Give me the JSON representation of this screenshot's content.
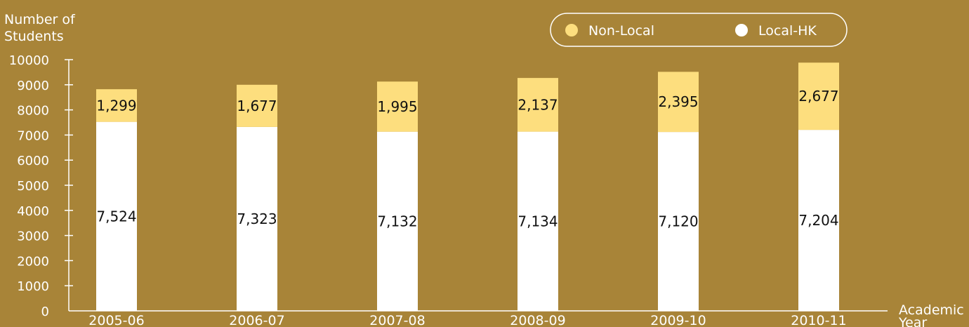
{
  "chart_data": {
    "type": "bar",
    "stacked": true,
    "ylabel": "Number of Students",
    "xlabel": "Academic Year",
    "ylim": [
      0,
      10000
    ],
    "y_ticks": [
      "0",
      "1000",
      "2000",
      "3000",
      "4000",
      "5000",
      "6000",
      "7000",
      "8000",
      "9000",
      "10000"
    ],
    "categories": [
      "2005-06",
      "2006-07",
      "2007-08",
      "2008-09",
      "2009-10",
      "2010-11"
    ],
    "series": [
      {
        "name": "Local-HK",
        "color": "#FFFFFF",
        "values": [
          7524,
          7323,
          7132,
          7134,
          7120,
          7204
        ],
        "labels": [
          "7,524",
          "7,323",
          "7,132",
          "7,134",
          "7,120",
          "7,204"
        ]
      },
      {
        "name": "Non-Local",
        "color": "#FDDE7E",
        "values": [
          1299,
          1677,
          1995,
          2137,
          2395,
          2677
        ],
        "labels": [
          "1,299",
          "1,677",
          "1,995",
          "2,137",
          "2,395",
          "2,677"
        ]
      }
    ],
    "legend": {
      "position": "top-right",
      "order": [
        "Non-Local",
        "Local-HK"
      ]
    },
    "grid": false,
    "colors": {
      "background": "#A88438",
      "axis": "#FFFFFF",
      "text": "#FFFFFF"
    }
  }
}
